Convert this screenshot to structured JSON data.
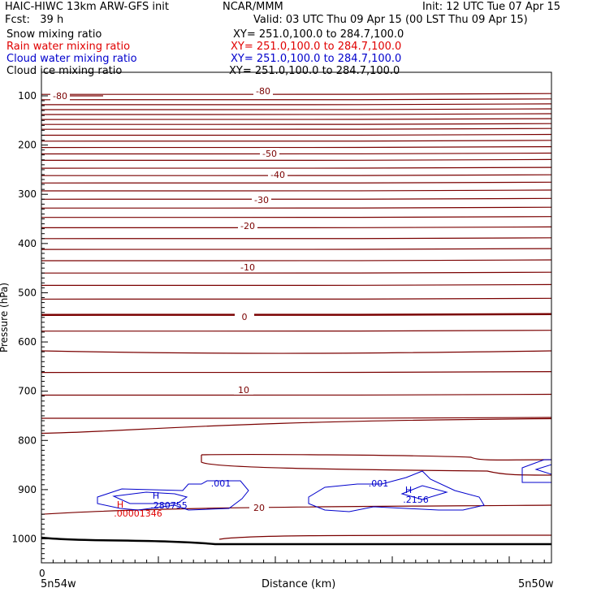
{
  "header": {
    "title": "HAIC-HIWC 13km ARW-GFS init",
    "org": "NCAR/MMM",
    "init": "Init: 12 UTC Tue 07 Apr 15",
    "fcst": "Fcst:   39 h",
    "valid": "Valid: 03 UTC Thu 09 Apr 15 (00 LST Thu 09 Apr 15)"
  },
  "fields": [
    {
      "name": "Snow mixing ratio",
      "xy": "XY= 251.0,100.0 to 284.7,100.0",
      "color": "#000000"
    },
    {
      "name": "Rain water mixing ratio",
      "xy": "XY= 251.0,100.0 to 284.7,100.0",
      "color": "#e00000"
    },
    {
      "name": "Cloud water mixing ratio",
      "xy": "XY= 251.0,100.0 to 284.7,100.0",
      "color": "#0000cc"
    },
    {
      "name": "Cloud ice mixing ratio",
      "xy": "XY= 251.0,100.0 to 284.7,100.0",
      "color": "#000000"
    }
  ],
  "chart_data": {
    "type": "line",
    "ylabel": "Pressure (hPa)",
    "xlabel": "Distance (km)",
    "y_ticks": [
      "100",
      "200",
      "300",
      "400",
      "500",
      "600",
      "700",
      "800",
      "900",
      "1000"
    ],
    "ylim": [
      1050,
      90
    ],
    "x_origin_label": "0",
    "x_left_label": "5n54w",
    "x_right_label": "5n50w",
    "isotherm_color": "#7a0000",
    "temperature_contours": [
      {
        "label": "-80",
        "pressure": 120
      },
      {
        "label": "-80",
        "pressure": 110
      },
      {
        "label": "-50",
        "pressure": 215
      },
      {
        "label": "-40",
        "pressure": 250
      },
      {
        "label": "-30",
        "pressure": 295
      },
      {
        "label": "-20",
        "pressure": 345
      },
      {
        "label": "-10",
        "pressure": 445
      },
      {
        "label": "0",
        "pressure": 545
      },
      {
        "label": "10",
        "pressure": 705
      },
      {
        "label": "20",
        "pressure": 950
      }
    ],
    "cloud_water_labels": [
      ".001",
      "H",
      ".280755",
      ".001",
      "H",
      ".2156"
    ],
    "rain_labels": [
      "H",
      ".00001346"
    ]
  }
}
